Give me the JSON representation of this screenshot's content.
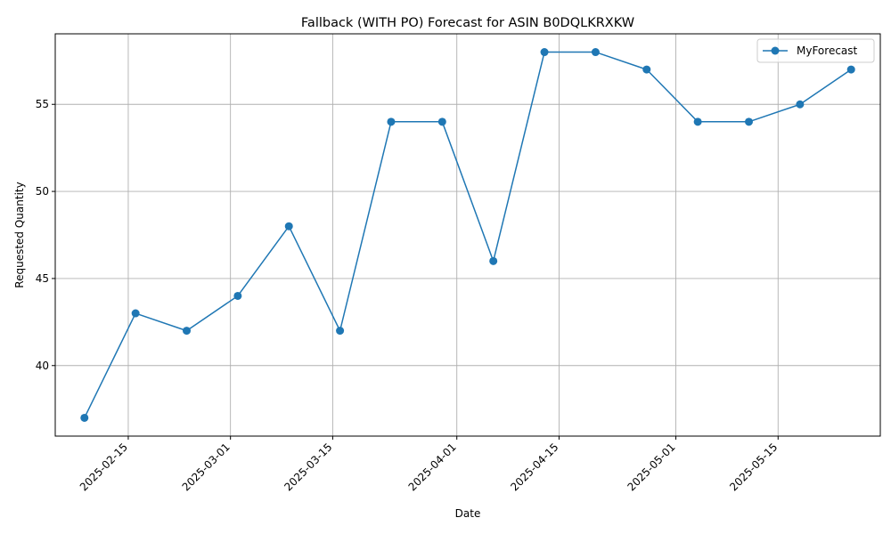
{
  "chart_data": {
    "type": "line",
    "title": "Fallback (WITH PO) Forecast for ASIN B0DQLKRXKW",
    "xlabel": "Date",
    "ylabel": "Requested Quantity",
    "x_scale": "date",
    "xlim": [
      "2025-02-05",
      "2025-05-29"
    ],
    "ylim": [
      35.95,
      59.05
    ],
    "x_ticks": [
      "2025-02-15",
      "2025-03-01",
      "2025-03-15",
      "2025-04-01",
      "2025-04-15",
      "2025-05-01",
      "2025-05-15"
    ],
    "y_ticks": [
      40,
      45,
      50,
      55
    ],
    "grid": true,
    "legend_position": "top-right",
    "line_color": "#1f77b4",
    "series": [
      {
        "name": "MyForecast",
        "marker": "circle",
        "color": "#1f77b4",
        "points": [
          {
            "x": "2025-02-09",
            "y": 37
          },
          {
            "x": "2025-02-16",
            "y": 43
          },
          {
            "x": "2025-02-23",
            "y": 42
          },
          {
            "x": "2025-03-02",
            "y": 44
          },
          {
            "x": "2025-03-09",
            "y": 48
          },
          {
            "x": "2025-03-16",
            "y": 42
          },
          {
            "x": "2025-03-23",
            "y": 54
          },
          {
            "x": "2025-03-30",
            "y": 54
          },
          {
            "x": "2025-04-06",
            "y": 46
          },
          {
            "x": "2025-04-13",
            "y": 58
          },
          {
            "x": "2025-04-20",
            "y": 58
          },
          {
            "x": "2025-04-27",
            "y": 57
          },
          {
            "x": "2025-05-04",
            "y": 54
          },
          {
            "x": "2025-05-11",
            "y": 54
          },
          {
            "x": "2025-05-18",
            "y": 55
          },
          {
            "x": "2025-05-25",
            "y": 57
          }
        ]
      }
    ]
  }
}
